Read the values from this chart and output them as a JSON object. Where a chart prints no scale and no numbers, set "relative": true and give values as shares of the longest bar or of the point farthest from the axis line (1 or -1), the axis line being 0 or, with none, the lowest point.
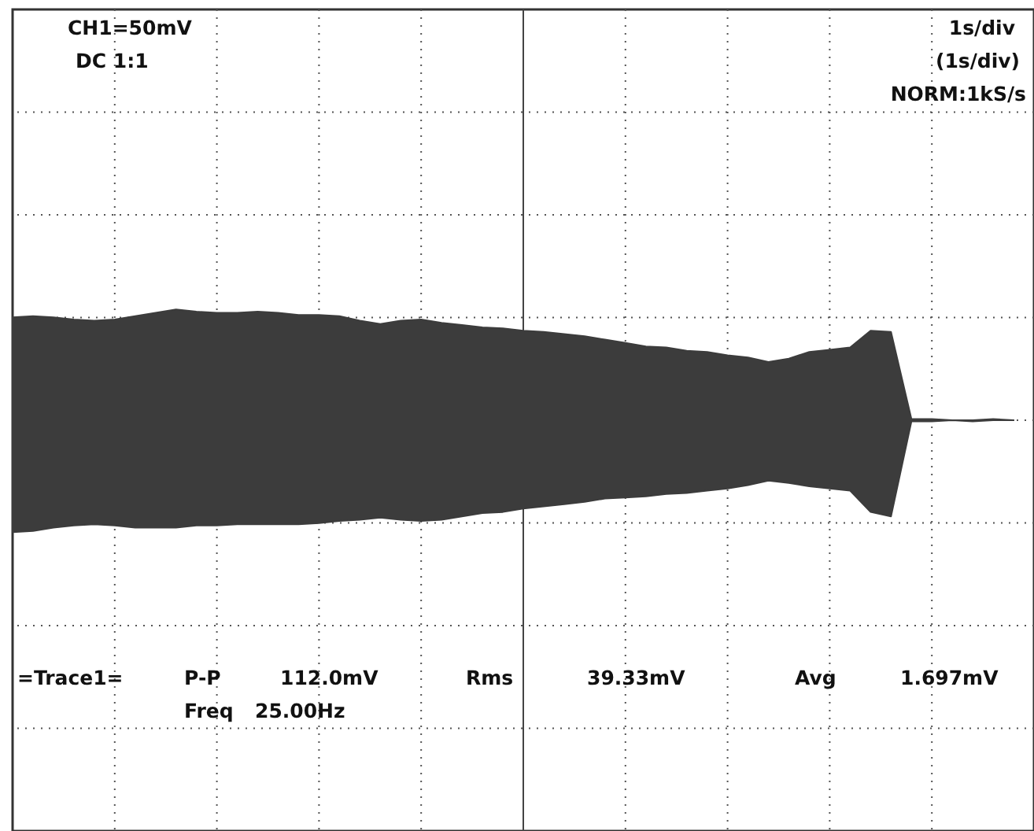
{
  "chart_data": {
    "type": "area",
    "relative": true,
    "grid": true,
    "categories": [
      null,
      null,
      null,
      null,
      null,
      null,
      null,
      null,
      null,
      null,
      null,
      null,
      null,
      null,
      null,
      null,
      null,
      null,
      null,
      null,
      null,
      null,
      null,
      null,
      null,
      null,
      null,
      null,
      null,
      null,
      null,
      null,
      null,
      null,
      null,
      null,
      null,
      null,
      null,
      null,
      null,
      null,
      null,
      null,
      null,
      null,
      null,
      null,
      null,
      null
    ],
    "series": [
      {
        "color": "#3c3c3c",
        "values": [
          0.92,
          0.93,
          0.92,
          0.9,
          0.89,
          0.9,
          0.93,
          0.96,
          0.99,
          0.97,
          0.96,
          0.96,
          0.97,
          0.96,
          0.94,
          0.94,
          0.93,
          0.89,
          0.86,
          0.89,
          0.9,
          0.87,
          0.85,
          0.83,
          0.82,
          0.8,
          0.79,
          0.77,
          0.75,
          0.72,
          0.69,
          0.66,
          0.65,
          0.62,
          0.61,
          0.58,
          0.56,
          0.52,
          0.55,
          0.61,
          0.63,
          0.65,
          0.8,
          0.79,
          0.01,
          0.01,
          0,
          0,
          0.01,
          0
        ]
      },
      {
        "color": "#3c3c3c",
        "values": [
          -1,
          -0.99,
          -0.96,
          -0.94,
          -0.93,
          -0.94,
          -0.96,
          -0.96,
          -0.96,
          -0.94,
          -0.94,
          -0.93,
          -0.93,
          -0.93,
          -0.93,
          -0.92,
          -0.9,
          -0.89,
          -0.87,
          -0.89,
          -0.9,
          -0.89,
          -0.86,
          -0.83,
          -0.82,
          -0.79,
          -0.77,
          -0.75,
          -0.73,
          -0.7,
          -0.69,
          -0.68,
          -0.66,
          -0.65,
          -0.63,
          -0.61,
          -0.58,
          -0.54,
          -0.56,
          -0.59,
          -0.61,
          -0.63,
          -0.82,
          -0.86,
          -0.01,
          -0.01,
          0,
          -0.01,
          0,
          0
        ]
      }
    ],
    "annotations": [
      "CH1=50mV",
      "DC 1:1",
      "1s/div",
      "(1s/div)",
      "NORM:1kS/s",
      "=Trace1=",
      "P-P",
      "112.0mV",
      "Rms",
      "39.33mV",
      "Avg",
      "1.697mV",
      "Freq",
      "25.00Hz"
    ]
  }
}
